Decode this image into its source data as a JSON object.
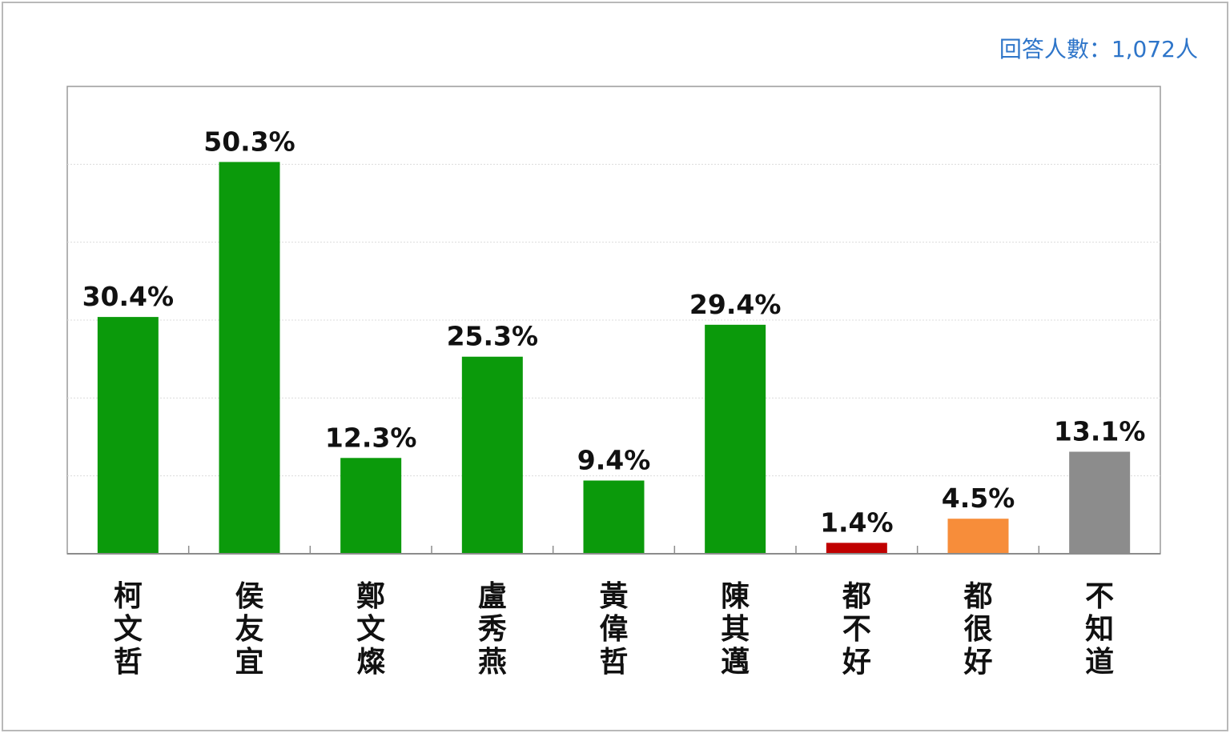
{
  "header": {
    "respondents": "回答人數：1,072人"
  },
  "chart_data": {
    "type": "bar",
    "categories": [
      "柯文哲",
      "侯友宜",
      "鄭文燦",
      "盧秀燕",
      "黃偉哲",
      "陳其邁",
      "都不好",
      "都很好",
      "不知道"
    ],
    "values": [
      30.4,
      50.3,
      12.3,
      25.3,
      9.4,
      29.4,
      1.4,
      4.5,
      13.1
    ],
    "data_labels": [
      "30.4%",
      "50.3%",
      "12.3%",
      "25.3%",
      "9.4%",
      "29.4%",
      "1.4%",
      "4.5%",
      "13.1%"
    ],
    "colors": [
      "#0b9a0b",
      "#0b9a0b",
      "#0b9a0b",
      "#0b9a0b",
      "#0b9a0b",
      "#0b9a0b",
      "#c00000",
      "#f78d3a",
      "#8c8c8c"
    ],
    "ylim": [
      0,
      60
    ],
    "grid": true,
    "title": "",
    "xlabel": "",
    "ylabel": ""
  }
}
